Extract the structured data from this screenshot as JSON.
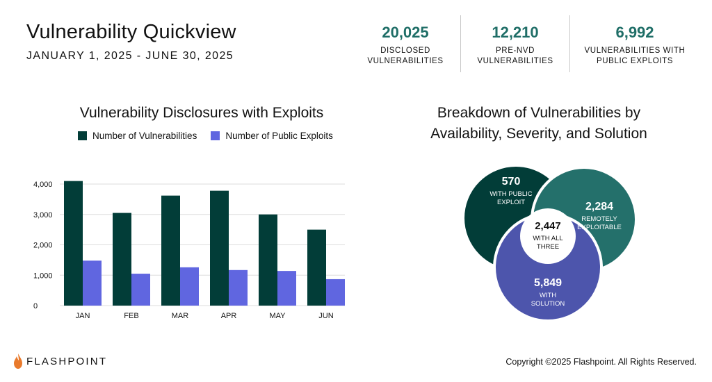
{
  "header": {
    "title": "Vulnerability Quickview",
    "date_range": "JANUARY 1, 2025 - JUNE 30, 2025"
  },
  "stats": [
    {
      "value": "20,025",
      "label": "DISCLOSED\nVULNERABILITIES"
    },
    {
      "value": "12,210",
      "label": "PRE-NVD\nVULNERABILITIES"
    },
    {
      "value": "6,992",
      "label": "VULNERABILITIES WITH\nPUBLIC EXPLOITS"
    }
  ],
  "colors": {
    "dark_green": "#023d38",
    "blue": "#6066e0",
    "teal": "#24706b",
    "indigo": "#4d55ac",
    "stat_accent": "#1f6e67",
    "logo_flame": "#e97a2c"
  },
  "chart_data": [
    {
      "type": "bar",
      "title": "Vulnerability Disclosures with Exploits",
      "categories": [
        "JAN",
        "FEB",
        "MAR",
        "APR",
        "MAY",
        "JUN"
      ],
      "series": [
        {
          "name": "Number of Vulnerabilities",
          "values": [
            4100,
            3050,
            3620,
            3780,
            3000,
            2500
          ]
        },
        {
          "name": "Number of Public Exploits",
          "values": [
            1480,
            1050,
            1260,
            1170,
            1140,
            870
          ]
        }
      ],
      "yticks": [
        "0",
        "1,000",
        "2,000",
        "3,000",
        "4,000"
      ],
      "ylim": [
        0,
        4200
      ],
      "grid": true,
      "legend": "top"
    },
    {
      "type": "venn",
      "title_lines": [
        "Breakdown of Vulnerabilities by",
        "Availability, Severity, and Solution"
      ],
      "sets": [
        {
          "value": "570",
          "label": [
            "WITH PUBLIC",
            "EXPLOIT"
          ]
        },
        {
          "value": "2,284",
          "label": [
            "REMOTELY",
            "EXPLOITABLE"
          ]
        },
        {
          "value": "5,849",
          "label": [
            "WITH",
            "SOLUTION"
          ]
        }
      ],
      "intersection": {
        "value": "2,447",
        "label": [
          "WITH ALL",
          "THREE"
        ]
      }
    }
  ],
  "footer": {
    "brand": "FLASHPOINT",
    "copyright": "Copyright ©2025 Flashpoint. All Rights Reserved."
  }
}
